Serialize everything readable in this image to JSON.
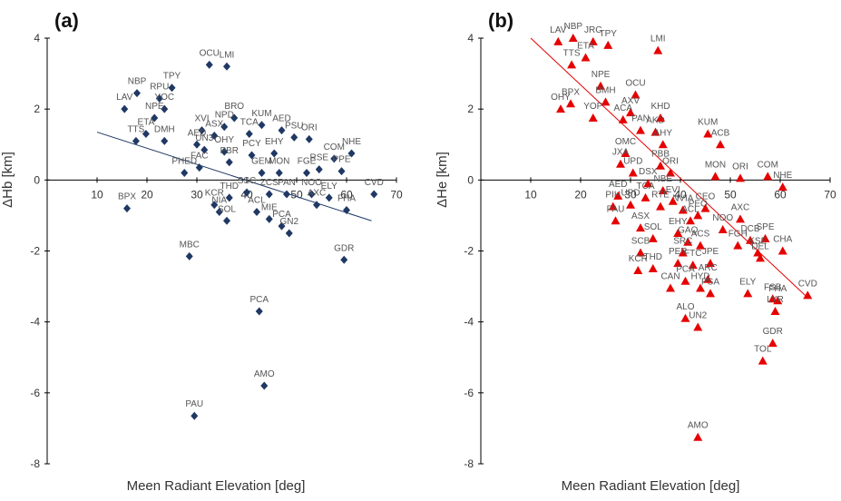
{
  "chart_data": [
    {
      "type": "scatter",
      "panel_label": "(a)",
      "xlabel": "Meen Radiant Elevation [deg]",
      "ylabel": "ΔHb [km]",
      "xlim": [
        0,
        70
      ],
      "ylim": [
        -8,
        4
      ],
      "xticks": [
        "10",
        "20",
        "30",
        "40",
        "50",
        "60",
        "70"
      ],
      "yticks": [
        "-8",
        "-6",
        "-4",
        "-2",
        "0",
        "2",
        "4"
      ],
      "grid": false,
      "marker_color": "#1f3864",
      "trendline": {
        "x": [
          10,
          65
        ],
        "y": [
          1.35,
          -1.15
        ]
      },
      "points": [
        {
          "x": 32.5,
          "y": 3.25,
          "label": "OCU"
        },
        {
          "x": 36,
          "y": 3.2,
          "label": "LMI"
        },
        {
          "x": 18,
          "y": 2.45,
          "label": "NBP"
        },
        {
          "x": 25,
          "y": 2.6,
          "label": "TPY"
        },
        {
          "x": 15.5,
          "y": 2.0,
          "label": "LAV"
        },
        {
          "x": 22.5,
          "y": 2.3,
          "label": "RPU"
        },
        {
          "x": 23.5,
          "y": 2.0,
          "label": "YOC"
        },
        {
          "x": 21.5,
          "y": 1.75,
          "label": "NPE"
        },
        {
          "x": 23.5,
          "y": 1.1,
          "label": "DMH"
        },
        {
          "x": 17.8,
          "y": 1.1,
          "label": "TTS"
        },
        {
          "x": 19.8,
          "y": 1.3,
          "label": "ETA"
        },
        {
          "x": 16,
          "y": -0.8,
          "label": "BPX"
        },
        {
          "x": 37.5,
          "y": 1.75,
          "label": "BRO"
        },
        {
          "x": 35.5,
          "y": 1.5,
          "label": "NPD"
        },
        {
          "x": 31,
          "y": 1.4,
          "label": "XVI"
        },
        {
          "x": 33.5,
          "y": 1.25,
          "label": "ASX"
        },
        {
          "x": 30,
          "y": 1.0,
          "label": "AED"
        },
        {
          "x": 31.5,
          "y": 0.85,
          "label": "UN3"
        },
        {
          "x": 35.5,
          "y": 0.8,
          "label": "OHY"
        },
        {
          "x": 40.5,
          "y": 1.3,
          "label": "TCA"
        },
        {
          "x": 43,
          "y": 1.55,
          "label": "KUM"
        },
        {
          "x": 47,
          "y": 1.4,
          "label": "AED"
        },
        {
          "x": 49.5,
          "y": 1.2,
          "label": "PSU"
        },
        {
          "x": 52.5,
          "y": 1.15,
          "label": "ORI"
        },
        {
          "x": 45.5,
          "y": 0.75,
          "label": "EHY"
        },
        {
          "x": 41,
          "y": 0.7,
          "label": "PCY"
        },
        {
          "x": 36.5,
          "y": 0.5,
          "label": "PBR"
        },
        {
          "x": 30.5,
          "y": 0.35,
          "label": "FAC"
        },
        {
          "x": 27.5,
          "y": 0.2,
          "label": "PHED"
        },
        {
          "x": 43,
          "y": 0.2,
          "label": "GEM"
        },
        {
          "x": 46.5,
          "y": 0.2,
          "label": "MON"
        },
        {
          "x": 52,
          "y": 0.2,
          "label": "FGE"
        },
        {
          "x": 54.5,
          "y": 0.3,
          "label": "RSE"
        },
        {
          "x": 57.5,
          "y": 0.6,
          "label": "COM"
        },
        {
          "x": 61,
          "y": 0.75,
          "label": "NHE"
        },
        {
          "x": 59,
          "y": 0.25,
          "label": "PPE"
        },
        {
          "x": 65.5,
          "y": -0.4,
          "label": "CVD"
        },
        {
          "x": 53,
          "y": -0.4,
          "label": "NOO"
        },
        {
          "x": 56.5,
          "y": -0.5,
          "label": "ELY"
        },
        {
          "x": 60,
          "y": -0.85,
          "label": "FHA"
        },
        {
          "x": 54,
          "y": -0.7,
          "label": "AXC"
        },
        {
          "x": 44.5,
          "y": -0.4,
          "label": "ZCS"
        },
        {
          "x": 48,
          "y": -0.4,
          "label": "PAN"
        },
        {
          "x": 40,
          "y": -0.35,
          "label": "SSC"
        },
        {
          "x": 36.5,
          "y": -0.5,
          "label": "THD"
        },
        {
          "x": 33.5,
          "y": -0.7,
          "label": "KCR"
        },
        {
          "x": 34.5,
          "y": -0.9,
          "label": "NIA"
        },
        {
          "x": 36,
          "y": -1.15,
          "label": "SOL"
        },
        {
          "x": 42,
          "y": -0.9,
          "label": "ACL"
        },
        {
          "x": 44.5,
          "y": -1.1,
          "label": "MIE"
        },
        {
          "x": 47,
          "y": -1.3,
          "label": "PCA"
        },
        {
          "x": 48.5,
          "y": -1.5,
          "label": "GN2"
        },
        {
          "x": 59.5,
          "y": -2.25,
          "label": "GDR"
        },
        {
          "x": 28.5,
          "y": -2.15,
          "label": "MBC"
        },
        {
          "x": 42.5,
          "y": -3.7,
          "label": "PCA"
        },
        {
          "x": 43.5,
          "y": -5.8,
          "label": "AMO"
        },
        {
          "x": 29.5,
          "y": -6.65,
          "label": "PAU"
        }
      ]
    },
    {
      "type": "scatter",
      "panel_label": "(b)",
      "xlabel": "Meen Radiant Elevation [deg]",
      "ylabel": "ΔHe [km]",
      "xlim": [
        0,
        70
      ],
      "ylim": [
        -8,
        4
      ],
      "xticks": [
        "10",
        "20",
        "30",
        "40",
        "50",
        "60",
        "70"
      ],
      "yticks": [
        "-8",
        "-6",
        "-4",
        "-2",
        "0",
        "2",
        "4"
      ],
      "grid": false,
      "marker_color": "#e60000",
      "trendline": {
        "x": [
          10,
          65
        ],
        "y": [
          4.0,
          -3.25
        ]
      },
      "points": [
        {
          "x": 15.5,
          "y": 3.9,
          "label": "LAV"
        },
        {
          "x": 18.5,
          "y": 4.0,
          "label": "NBP"
        },
        {
          "x": 22.5,
          "y": 3.9,
          "label": "JRC"
        },
        {
          "x": 25.5,
          "y": 3.8,
          "label": "TPY"
        },
        {
          "x": 21,
          "y": 3.45,
          "label": "ETA"
        },
        {
          "x": 18.2,
          "y": 3.25,
          "label": "TTS"
        },
        {
          "x": 24,
          "y": 2.65,
          "label": "NPE"
        },
        {
          "x": 35.5,
          "y": 3.65,
          "label": "LMI"
        },
        {
          "x": 31,
          "y": 2.4,
          "label": "OCU"
        },
        {
          "x": 25,
          "y": 2.2,
          "label": "BMH"
        },
        {
          "x": 16,
          "y": 2.0,
          "label": "OHY"
        },
        {
          "x": 18,
          "y": 2.15,
          "label": "BPX"
        },
        {
          "x": 22.5,
          "y": 1.75,
          "label": "YOP"
        },
        {
          "x": 30,
          "y": 1.9,
          "label": "AXV"
        },
        {
          "x": 28.5,
          "y": 1.7,
          "label": "ACA"
        },
        {
          "x": 36,
          "y": 1.75,
          "label": "KHD"
        },
        {
          "x": 32,
          "y": 1.4,
          "label": "PAN"
        },
        {
          "x": 35,
          "y": 1.35,
          "label": "AKD"
        },
        {
          "x": 36.5,
          "y": 1.0,
          "label": "AHY"
        },
        {
          "x": 45.5,
          "y": 1.3,
          "label": "KUM"
        },
        {
          "x": 48,
          "y": 1.0,
          "label": "ACB"
        },
        {
          "x": 29,
          "y": 0.75,
          "label": "OMC"
        },
        {
          "x": 28,
          "y": 0.45,
          "label": "JXA"
        },
        {
          "x": 30.5,
          "y": 0.2,
          "label": "UPD"
        },
        {
          "x": 36,
          "y": 0.4,
          "label": "PBB"
        },
        {
          "x": 38,
          "y": 0.2,
          "label": "ORI"
        },
        {
          "x": 47,
          "y": 0.1,
          "label": "MON"
        },
        {
          "x": 52,
          "y": 0.05,
          "label": "ORI"
        },
        {
          "x": 57.5,
          "y": 0.1,
          "label": "COM"
        },
        {
          "x": 60.5,
          "y": -0.2,
          "label": "NHE"
        },
        {
          "x": 33.5,
          "y": -0.1,
          "label": "DSX"
        },
        {
          "x": 36.5,
          "y": -0.3,
          "label": "NBE"
        },
        {
          "x": 27.5,
          "y": -0.45,
          "label": "AED"
        },
        {
          "x": 26.5,
          "y": -0.75,
          "label": "PIH"
        },
        {
          "x": 30,
          "y": -0.7,
          "label": "UPD"
        },
        {
          "x": 33,
          "y": -0.5,
          "label": "TCA"
        },
        {
          "x": 36,
          "y": -0.75,
          "label": "RTE"
        },
        {
          "x": 38.5,
          "y": -0.6,
          "label": "EVI"
        },
        {
          "x": 40.5,
          "y": -0.85,
          "label": "NVIA"
        },
        {
          "x": 42,
          "y": -1.15,
          "label": "ACL"
        },
        {
          "x": 43.5,
          "y": -1.0,
          "label": "PEO"
        },
        {
          "x": 45,
          "y": -0.8,
          "label": "CEO"
        },
        {
          "x": 52,
          "y": -1.1,
          "label": "AXC"
        },
        {
          "x": 27,
          "y": -1.15,
          "label": "PAU"
        },
        {
          "x": 32,
          "y": -1.35,
          "label": "ASX"
        },
        {
          "x": 34.5,
          "y": -1.65,
          "label": "SOL"
        },
        {
          "x": 39.5,
          "y": -1.5,
          "label": "EHY"
        },
        {
          "x": 41.5,
          "y": -1.75,
          "label": "GAQ"
        },
        {
          "x": 44,
          "y": -1.85,
          "label": "ACS"
        },
        {
          "x": 48.5,
          "y": -1.4,
          "label": "NOO"
        },
        {
          "x": 51.5,
          "y": -1.85,
          "label": "FGH"
        },
        {
          "x": 54,
          "y": -1.7,
          "label": "DCB"
        },
        {
          "x": 57,
          "y": -1.65,
          "label": "SPE"
        },
        {
          "x": 55.5,
          "y": -2.05,
          "label": "KSE"
        },
        {
          "x": 56,
          "y": -2.2,
          "label": "DEL"
        },
        {
          "x": 60.5,
          "y": -2.0,
          "label": "CHA"
        },
        {
          "x": 32,
          "y": -2.05,
          "label": "SCB"
        },
        {
          "x": 40.5,
          "y": -2.05,
          "label": "SRC"
        },
        {
          "x": 39.5,
          "y": -2.35,
          "label": "PER"
        },
        {
          "x": 42.5,
          "y": -2.4,
          "label": "FTC"
        },
        {
          "x": 46,
          "y": -2.35,
          "label": "JPE"
        },
        {
          "x": 31.5,
          "y": -2.55,
          "label": "KCR"
        },
        {
          "x": 34.5,
          "y": -2.5,
          "label": "THD"
        },
        {
          "x": 41,
          "y": -2.85,
          "label": "PCA"
        },
        {
          "x": 45.5,
          "y": -2.8,
          "label": "ARC"
        },
        {
          "x": 44,
          "y": -3.05,
          "label": "HYD"
        },
        {
          "x": 46,
          "y": -3.2,
          "label": "PSA"
        },
        {
          "x": 38,
          "y": -3.05,
          "label": "CAN"
        },
        {
          "x": 53.5,
          "y": -3.2,
          "label": "ELY"
        },
        {
          "x": 58.5,
          "y": -3.35,
          "label": "FSB"
        },
        {
          "x": 59.5,
          "y": -3.4,
          "label": "FHA"
        },
        {
          "x": 59,
          "y": -3.7,
          "label": "LYR"
        },
        {
          "x": 65.5,
          "y": -3.25,
          "label": "CVD"
        },
        {
          "x": 41,
          "y": -3.9,
          "label": "ALO"
        },
        {
          "x": 43.5,
          "y": -4.15,
          "label": "UN2"
        },
        {
          "x": 58.5,
          "y": -4.6,
          "label": "GDR"
        },
        {
          "x": 56.5,
          "y": -5.1,
          "label": "TOL"
        },
        {
          "x": 43.5,
          "y": -7.25,
          "label": "AMO"
        }
      ]
    }
  ]
}
